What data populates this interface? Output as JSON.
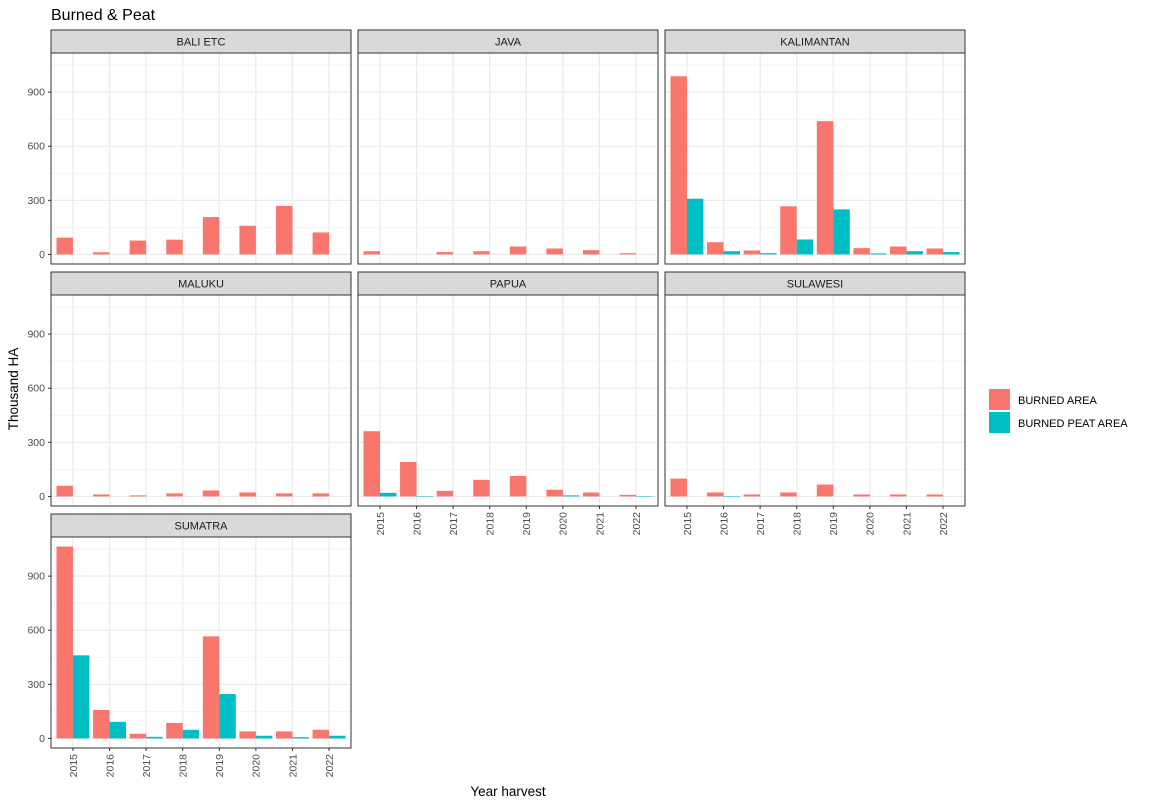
{
  "chart_data": {
    "type": "bar",
    "title": "Burned & Peat",
    "xlabel": "Year harvest",
    "ylabel": "Thousand HA",
    "categories": [
      "2015",
      "2016",
      "2017",
      "2018",
      "2019",
      "2020",
      "2021",
      "2022"
    ],
    "yticks": [
      0,
      300,
      600,
      900
    ],
    "ylim": [
      -53,
      1117
    ],
    "grid": true,
    "legend": {
      "placement": "right",
      "entries": [
        {
          "name": "BURNED AREA",
          "color": "#F8766D"
        },
        {
          "name": "BURNED PEAT AREA",
          "color": "#00BFC4"
        }
      ]
    },
    "facets": [
      {
        "name": "BALI ETC",
        "series": [
          {
            "name": "BURNED AREA",
            "values": [
              93,
              12,
              77,
              82,
              207,
              159,
              269,
              122
            ]
          },
          {
            "name": "BURNED PEAT AREA",
            "values": [
              0,
              0,
              0,
              0,
              0,
              0,
              0,
              0
            ]
          }
        ]
      },
      {
        "name": "JAVA",
        "series": [
          {
            "name": "BURNED AREA",
            "values": [
              18,
              0,
              13,
              18,
              44,
              33,
              24,
              7
            ]
          },
          {
            "name": "BURNED PEAT AREA",
            "values": [
              0,
              0,
              0,
              0,
              0,
              0,
              0,
              0
            ]
          }
        ]
      },
      {
        "name": "KALIMANTAN",
        "series": [
          {
            "name": "BURNED AREA",
            "values": [
              988,
              68,
              22,
              267,
              739,
              35,
              44,
              33
            ]
          },
          {
            "name": "BURNED PEAT AREA",
            "values": [
              309,
              18,
              7,
              83,
              250,
              6,
              18,
              13
            ]
          }
        ]
      },
      {
        "name": "MALUKU",
        "series": [
          {
            "name": "BURNED AREA",
            "values": [
              59,
              11,
              6,
              17,
              33,
              22,
              17,
              17
            ]
          },
          {
            "name": "BURNED PEAT AREA",
            "values": [
              0,
              0,
              0,
              0,
              0,
              0,
              0,
              0
            ]
          }
        ]
      },
      {
        "name": "PAPUA",
        "series": [
          {
            "name": "BURNED AREA",
            "values": [
              362,
              191,
              31,
              92,
              114,
              37,
              22,
              9
            ]
          },
          {
            "name": "BURNED PEAT AREA",
            "values": [
              20,
              1,
              0,
              0,
              0,
              6,
              0,
              1
            ]
          }
        ]
      },
      {
        "name": "SULAWESI",
        "series": [
          {
            "name": "BURNED AREA",
            "values": [
              99,
              22,
              11,
              22,
              66,
              11,
              11,
              11
            ]
          },
          {
            "name": "BURNED PEAT AREA",
            "values": [
              0,
              1,
              0,
              0,
              0,
              0,
              0,
              0
            ]
          }
        ]
      },
      {
        "name": "SUMATRA",
        "series": [
          {
            "name": "BURNED AREA",
            "values": [
              1064,
              158,
              26,
              86,
              566,
              39,
              39,
              48
            ]
          },
          {
            "name": "BURNED PEAT AREA",
            "values": [
              461,
              92,
              9,
              48,
              246,
              15,
              7,
              15
            ]
          }
        ]
      }
    ]
  }
}
